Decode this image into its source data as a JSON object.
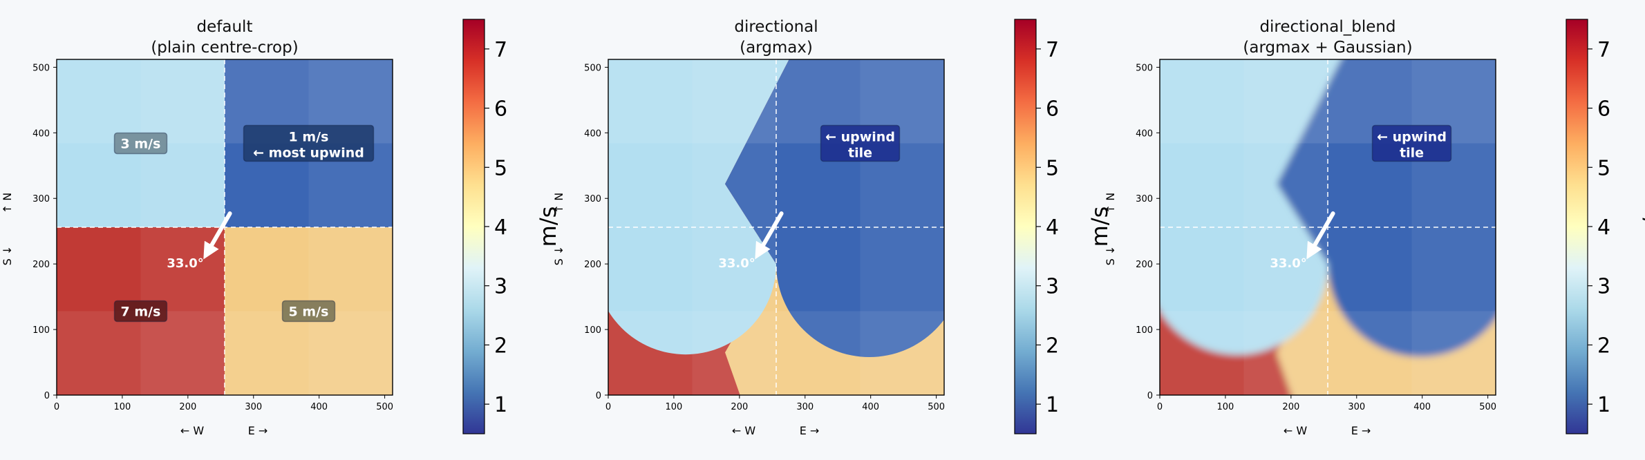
{
  "chart_data": [
    {
      "type": "heatmap",
      "title_line1": "default",
      "title_line2": "(plain centre-crop)",
      "xlabel_left": "← W",
      "xlabel_right": "E →",
      "ylabel_bottom": "S ↓",
      "ylabel_top": "↑ N",
      "xlim": [
        0,
        512
      ],
      "ylim": [
        0,
        512
      ],
      "xticks": [
        0,
        100,
        200,
        300,
        400,
        500
      ],
      "yticks": [
        0,
        100,
        200,
        300,
        400,
        500
      ],
      "colorbar_label": "m/s",
      "colorbar_ticks": [
        1,
        2,
        3,
        4,
        5,
        6,
        7
      ],
      "colorbar_range": [
        0.5,
        7.5
      ],
      "mode": "default",
      "tile_speeds": {
        "top_left": 3,
        "top_right": 1,
        "bottom_left": 7,
        "bottom_right": 5
      },
      "dividers": {
        "x": 256,
        "y": 256
      },
      "arrow_angle_label": "33.0°",
      "annotations": [
        {
          "text": "3 m/s",
          "x": 128,
          "y": 384,
          "style": "grey"
        },
        {
          "text": "1 m/s",
          "text2": "← most upwind",
          "x": 384,
          "y": 384,
          "style": "darkblue"
        },
        {
          "text": "7 m/s",
          "x": 128,
          "y": 128,
          "style": "darkred"
        },
        {
          "text": "5 m/s",
          "x": 384,
          "y": 128,
          "style": "olive"
        }
      ]
    },
    {
      "type": "heatmap",
      "title_line1": "directional",
      "title_line2": "(argmax)",
      "xlabel_left": "← W",
      "xlabel_right": "E →",
      "ylabel_bottom": "S ↓",
      "ylabel_top": "↑ N",
      "xlim": [
        0,
        512
      ],
      "ylim": [
        0,
        512
      ],
      "xticks": [
        0,
        100,
        200,
        300,
        400,
        500
      ],
      "yticks": [
        0,
        100,
        200,
        300,
        400,
        500
      ],
      "colorbar_label": "m/s",
      "colorbar_ticks": [
        1,
        2,
        3,
        4,
        5,
        6,
        7
      ],
      "colorbar_range": [
        0.5,
        7.5
      ],
      "mode": "directional",
      "tile_speeds": {
        "top_left": 3,
        "top_right": 1,
        "bottom_left": 7,
        "bottom_right": 5
      },
      "dividers": {
        "x": 256,
        "y": 256
      },
      "arrow_angle_label": "33.0°",
      "annotations": [
        {
          "text": "← upwind",
          "text2": "tile",
          "x": 384,
          "y": 384,
          "style": "navy"
        }
      ]
    },
    {
      "type": "heatmap",
      "title_line1": "directional_blend",
      "title_line2": "(argmax + Gaussian)",
      "xlabel_left": "← W",
      "xlabel_right": "E →",
      "ylabel_bottom": "S ↓",
      "ylabel_top": "↑ N",
      "xlim": [
        0,
        512
      ],
      "ylim": [
        0,
        512
      ],
      "xticks": [
        0,
        100,
        200,
        300,
        400,
        500
      ],
      "yticks": [
        0,
        100,
        200,
        300,
        400,
        500
      ],
      "colorbar_label": "m/s",
      "colorbar_ticks": [
        1,
        2,
        3,
        4,
        5,
        6,
        7
      ],
      "colorbar_range": [
        0.5,
        7.5
      ],
      "mode": "blend",
      "tile_speeds": {
        "top_left": 3,
        "top_right": 1,
        "bottom_left": 7,
        "bottom_right": 5
      },
      "dividers": {
        "x": 256,
        "y": 256
      },
      "arrow_angle_label": "33.0°",
      "annotations": [
        {
          "text": "← upwind",
          "text2": "tile",
          "x": 384,
          "y": 384,
          "style": "navy"
        }
      ]
    }
  ],
  "colors": {
    "speed_1": "#3b66b4",
    "speed_3": "#b3dff1",
    "speed_5": "#f3cc86",
    "speed_7": "#c13a35",
    "background": "#f6f8fa"
  }
}
